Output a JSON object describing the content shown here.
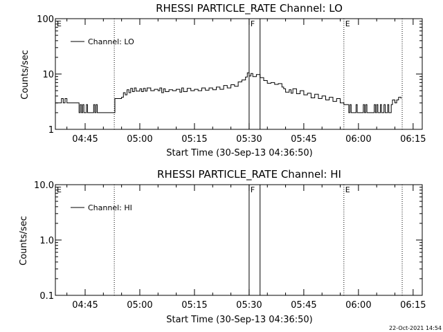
{
  "stamp": "22-Oct-2021 14:54",
  "chart_data": [
    {
      "type": "line",
      "title": "RHESSI PARTICLE_RATE Channel: LO",
      "xlabel": "Start Time (30-Sep-13 04:36:50)",
      "ylabel": "Counts/sec",
      "yscale": "log",
      "xlim": [
        "04:36:50",
        "06:17:30"
      ],
      "ylim": [
        1,
        100
      ],
      "x_ticks": [
        "04:45",
        "05:00",
        "05:15",
        "05:30",
        "05:45",
        "06:00",
        "06:15"
      ],
      "y_ticks": [
        "1",
        "10",
        "100"
      ],
      "legend": {
        "entry": "Channel: LO",
        "position": "top-left"
      },
      "markers": [
        {
          "label": "E",
          "time": "04:36:50",
          "style": "dotted"
        },
        {
          "label": "",
          "time": "04:53:00",
          "style": "dotted"
        },
        {
          "label": "F",
          "time": "05:30:00",
          "style": "solid"
        },
        {
          "label": "",
          "time": "05:33:00",
          "style": "solid"
        },
        {
          "label": "E",
          "time": "05:56:00",
          "style": "dotted"
        },
        {
          "label": "",
          "time": "06:12:00",
          "style": "dotted"
        }
      ],
      "series": [
        {
          "points": [
            [
              "04:36:50",
              3.0
            ],
            [
              "04:38:00",
              3.0
            ],
            [
              "04:38:30",
              3.6
            ],
            [
              "04:39:00",
              3.0
            ],
            [
              "04:39:30",
              3.6
            ],
            [
              "04:40:00",
              3.0
            ],
            [
              "04:43:00",
              3.0
            ],
            [
              "04:43:20",
              2.0
            ],
            [
              "04:43:40",
              2.8
            ],
            [
              "04:44:00",
              2.0
            ],
            [
              "04:44:20",
              2.8
            ],
            [
              "04:44:40",
              2.0
            ],
            [
              "04:45:00",
              2.0
            ],
            [
              "04:45:20",
              2.8
            ],
            [
              "04:45:40",
              2.0
            ],
            [
              "04:47:00",
              2.0
            ],
            [
              "04:47:20",
              2.8
            ],
            [
              "04:47:40",
              2.0
            ],
            [
              "04:48:00",
              2.8
            ],
            [
              "04:48:20",
              2.0
            ],
            [
              "04:50:00",
              2.0
            ],
            [
              "04:53:00",
              2.0
            ],
            [
              "04:53:10",
              3.6
            ],
            [
              "04:55:00",
              3.8
            ],
            [
              "04:55:30",
              4.6
            ],
            [
              "04:56:00",
              4.2
            ],
            [
              "04:56:30",
              5.2
            ],
            [
              "04:57:00",
              4.6
            ],
            [
              "04:57:30",
              5.5
            ],
            [
              "04:58:00",
              4.8
            ],
            [
              "04:58:30",
              5.6
            ],
            [
              "04:59:00",
              4.9
            ],
            [
              "05:00:00",
              5.4
            ],
            [
              "05:00:30",
              4.8
            ],
            [
              "05:01:00",
              5.5
            ],
            [
              "05:01:30",
              4.9
            ],
            [
              "05:02:00",
              5.6
            ],
            [
              "05:03:00",
              5.0
            ],
            [
              "05:04:00",
              5.3
            ],
            [
              "05:05:00",
              5.0
            ],
            [
              "05:05:30",
              5.6
            ],
            [
              "05:06:00",
              4.6
            ],
            [
              "05:06:30",
              5.4
            ],
            [
              "05:07:00",
              4.8
            ],
            [
              "05:08:00",
              5.2
            ],
            [
              "05:09:00",
              5.0
            ],
            [
              "05:10:00",
              5.3
            ],
            [
              "05:11:00",
              4.7
            ],
            [
              "05:11:30",
              5.6
            ],
            [
              "05:12:00",
              4.8
            ],
            [
              "05:13:00",
              5.5
            ],
            [
              "05:14:00",
              5.0
            ],
            [
              "05:15:00",
              5.3
            ],
            [
              "05:16:00",
              5.0
            ],
            [
              "05:17:00",
              5.6
            ],
            [
              "05:18:00",
              5.1
            ],
            [
              "05:19:00",
              5.6
            ],
            [
              "05:20:00",
              5.2
            ],
            [
              "05:21:00",
              5.8
            ],
            [
              "05:22:00",
              5.3
            ],
            [
              "05:23:00",
              6.2
            ],
            [
              "05:24:00",
              5.6
            ],
            [
              "05:25:00",
              6.4
            ],
            [
              "05:26:00",
              6.0
            ],
            [
              "05:27:00",
              7.2
            ],
            [
              "05:28:00",
              7.8
            ],
            [
              "05:29:00",
              8.8
            ],
            [
              "05:29:30",
              10.5
            ],
            [
              "05:30:00",
              9.2
            ],
            [
              "05:30:30",
              10.2
            ],
            [
              "05:31:00",
              9.0
            ],
            [
              "05:32:00",
              9.8
            ],
            [
              "05:33:00",
              8.6
            ],
            [
              "05:34:00",
              7.6
            ],
            [
              "05:35:00",
              6.8
            ],
            [
              "05:36:00",
              7.0
            ],
            [
              "05:37:00",
              6.5
            ],
            [
              "05:38:00",
              6.7
            ],
            [
              "05:39:00",
              5.8
            ],
            [
              "05:39:30",
              5.4
            ],
            [
              "05:40:00",
              4.7
            ],
            [
              "05:41:00",
              5.2
            ],
            [
              "05:41:30",
              4.5
            ],
            [
              "05:42:00",
              5.4
            ],
            [
              "05:43:00",
              4.4
            ],
            [
              "05:44:00",
              5.0
            ],
            [
              "05:45:00",
              4.2
            ],
            [
              "05:46:00",
              4.5
            ],
            [
              "05:47:00",
              3.7
            ],
            [
              "05:48:00",
              4.3
            ],
            [
              "05:49:00",
              3.6
            ],
            [
              "05:50:00",
              4.0
            ],
            [
              "05:51:00",
              3.4
            ],
            [
              "05:52:00",
              3.8
            ],
            [
              "05:53:00",
              3.2
            ],
            [
              "05:54:00",
              3.6
            ],
            [
              "05:55:00",
              3.0
            ],
            [
              "05:56:00",
              2.8
            ],
            [
              "05:57:00",
              2.8
            ],
            [
              "05:57:20",
              2.0
            ],
            [
              "05:57:40",
              2.8
            ],
            [
              "05:58:00",
              2.0
            ],
            [
              "05:59:00",
              2.0
            ],
            [
              "05:59:20",
              2.8
            ],
            [
              "05:59:40",
              2.0
            ],
            [
              "06:01:00",
              2.0
            ],
            [
              "06:01:20",
              2.8
            ],
            [
              "06:01:40",
              2.0
            ],
            [
              "06:02:00",
              2.8
            ],
            [
              "06:02:20",
              2.0
            ],
            [
              "06:04:00",
              2.0
            ],
            [
              "06:04:20",
              2.8
            ],
            [
              "06:04:40",
              2.0
            ],
            [
              "06:05:00",
              2.8
            ],
            [
              "06:05:20",
              2.0
            ],
            [
              "06:06:00",
              2.8
            ],
            [
              "06:06:20",
              2.0
            ],
            [
              "06:07:00",
              2.8
            ],
            [
              "06:07:20",
              2.0
            ],
            [
              "06:08:00",
              2.8
            ],
            [
              "06:08:20",
              2.0
            ],
            [
              "06:09:00",
              2.8
            ],
            [
              "06:09:20",
              3.4
            ],
            [
              "06:10:00",
              3.0
            ],
            [
              "06:10:30",
              3.4
            ],
            [
              "06:11:00",
              3.8
            ],
            [
              "06:11:40",
              3.6
            ]
          ]
        }
      ]
    },
    {
      "type": "line",
      "title": "RHESSI PARTICLE_RATE Channel: HI",
      "xlabel": "Start Time (30-Sep-13 04:36:50)",
      "ylabel": "Counts/sec",
      "yscale": "log",
      "xlim": [
        "04:36:50",
        "06:17:30"
      ],
      "ylim": [
        0.1,
        10.0
      ],
      "x_ticks": [
        "04:45",
        "05:00",
        "05:15",
        "05:30",
        "05:45",
        "06:00",
        "06:15"
      ],
      "y_ticks": [
        "0.1",
        "1.0",
        "10.0"
      ],
      "legend": {
        "entry": "Channel: HI",
        "position": "top-left"
      },
      "markers": [
        {
          "label": "E",
          "time": "04:36:50",
          "style": "dotted"
        },
        {
          "label": "",
          "time": "04:53:00",
          "style": "dotted"
        },
        {
          "label": "F",
          "time": "05:30:00",
          "style": "solid"
        },
        {
          "label": "",
          "time": "05:33:00",
          "style": "solid"
        },
        {
          "label": "E",
          "time": "05:56:00",
          "style": "dotted"
        },
        {
          "label": "",
          "time": "06:12:00",
          "style": "dotted"
        }
      ],
      "series": [
        {
          "points": []
        }
      ]
    }
  ]
}
